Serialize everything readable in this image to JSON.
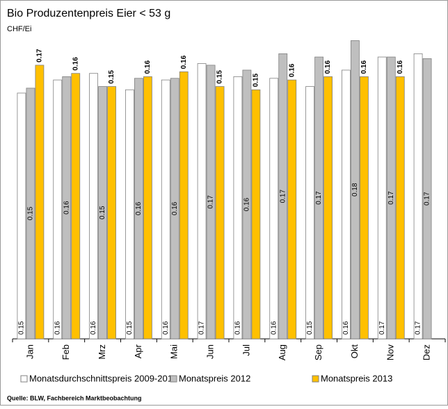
{
  "chart_data": {
    "type": "bar",
    "title": "Bio Produzentenpreis Eier < 53 g",
    "subtitle": "CHF/Ei",
    "source": "Quelle: BLW, Fachbereich Marktbeobachtung",
    "categories": [
      "Jan",
      "Feb",
      "Mrz",
      "Apr",
      "Mai",
      "Jun",
      "Jul",
      "Aug",
      "Sep",
      "Okt",
      "Nov",
      "Dez"
    ],
    "ylim": [
      0,
      0.2
    ],
    "series": [
      {
        "name": "Monatsdurchschnittspreis 2009-2011",
        "color": "#ffffff",
        "values": [
          0.15,
          0.158,
          0.162,
          0.152,
          0.158,
          0.168,
          0.16,
          0.159,
          0.154,
          0.164,
          0.172,
          0.174
        ],
        "value_labels": [
          "0.15",
          "0.16",
          "0.16",
          "0.15",
          "0.16",
          "0.17",
          "0.16",
          "0.16",
          "0.15",
          "0.16",
          "0.17",
          "0.17"
        ]
      },
      {
        "name": "Monatspreis 2012",
        "color": "#bfbfbf",
        "values": [
          0.153,
          0.16,
          0.154,
          0.159,
          0.159,
          0.167,
          0.164,
          0.174,
          0.172,
          0.182,
          0.172,
          0.171
        ],
        "value_labels": [
          "0.15",
          "0.16",
          "0.15",
          "0.16",
          "0.16",
          "0.17",
          "0.16",
          "0.17",
          "0.17",
          "0.18",
          "0.17",
          "0.17"
        ]
      },
      {
        "name": "Monatspreis 2013",
        "color": "#ffc000",
        "values": [
          0.167,
          0.162,
          0.154,
          0.16,
          0.163,
          0.154,
          0.152,
          0.158,
          0.16,
          0.16,
          0.16,
          null
        ],
        "value_labels": [
          "0.17",
          "0.16",
          "0.15",
          "0.16",
          "0.16",
          "0.15",
          "0.15",
          "0.16",
          "0.16",
          "0.16",
          "0.16",
          null
        ]
      }
    ]
  }
}
